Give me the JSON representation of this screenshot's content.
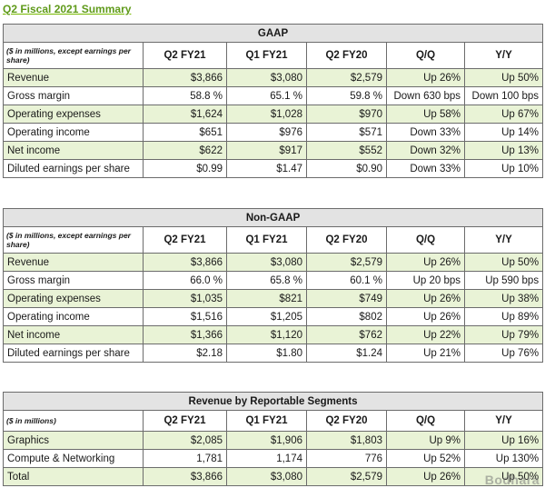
{
  "page_title": "Q2 Fiscal 2021 Summary",
  "watermark": "Bodhara",
  "gaap": {
    "title": "GAAP",
    "unit_note": "($ in millions, except earnings per share)",
    "columns": [
      "Q2 FY21",
      "Q1 FY21",
      "Q2 FY20",
      "Q/Q",
      "Y/Y"
    ],
    "rows": [
      {
        "label": "Revenue",
        "values": [
          "$3,866",
          "$3,080",
          "$2,579",
          "Up 26%",
          "Up 50%"
        ]
      },
      {
        "label": "Gross margin",
        "values": [
          "58.8 %",
          "65.1 %",
          "59.8 %",
          "Down 630 bps",
          "Down 100 bps"
        ]
      },
      {
        "label": "Operating expenses",
        "values": [
          "$1,624",
          "$1,028",
          "$970",
          "Up 58%",
          "Up 67%"
        ]
      },
      {
        "label": "Operating income",
        "values": [
          "$651",
          "$976",
          "$571",
          "Down 33%",
          "Up 14%"
        ]
      },
      {
        "label": "Net income",
        "values": [
          "$622",
          "$917",
          "$552",
          "Down 32%",
          "Up 13%"
        ]
      },
      {
        "label": "Diluted earnings per share",
        "values": [
          "$0.99",
          "$1.47",
          "$0.90",
          "Down 33%",
          "Up 10%"
        ]
      }
    ]
  },
  "non_gaap": {
    "title": "Non-GAAP",
    "unit_note": "($ in millions, except earnings per share)",
    "columns": [
      "Q2 FY21",
      "Q1 FY21",
      "Q2 FY20",
      "Q/Q",
      "Y/Y"
    ],
    "rows": [
      {
        "label": "Revenue",
        "values": [
          "$3,866",
          "$3,080",
          "$2,579",
          "Up 26%",
          "Up 50%"
        ]
      },
      {
        "label": "Gross margin",
        "values": [
          "66.0 %",
          "65.8 %",
          "60.1 %",
          "Up 20 bps",
          "Up 590 bps"
        ]
      },
      {
        "label": "Operating expenses",
        "values": [
          "$1,035",
          "$821",
          "$749",
          "Up 26%",
          "Up 38%"
        ]
      },
      {
        "label": "Operating income",
        "values": [
          "$1,516",
          "$1,205",
          "$802",
          "Up 26%",
          "Up 89%"
        ]
      },
      {
        "label": "Net income",
        "values": [
          "$1,366",
          "$1,120",
          "$762",
          "Up 22%",
          "Up 79%"
        ]
      },
      {
        "label": "Diluted earnings per share",
        "values": [
          "$2.18",
          "$1.80",
          "$1.24",
          "Up 21%",
          "Up 76%"
        ]
      }
    ]
  },
  "segments": {
    "title": "Revenue by Reportable Segments",
    "unit_note": "($ in millions)",
    "columns": [
      "Q2 FY21",
      "Q1 FY21",
      "Q2 FY20",
      "Q/Q",
      "Y/Y"
    ],
    "rows": [
      {
        "label": "Graphics",
        "values": [
          "$2,085",
          "$1,906",
          "$1,803",
          "Up 9%",
          "Up 16%"
        ]
      },
      {
        "label": "Compute & Networking",
        "values": [
          "1,781",
          "1,174",
          "776",
          "Up 52%",
          "Up 130%"
        ]
      },
      {
        "label": "Total",
        "values": [
          "$3,866",
          "$3,080",
          "$2,579",
          "Up 26%",
          "Up 50%"
        ]
      }
    ]
  },
  "colors": {
    "accent_green": "#76b900",
    "row_shade": "#e9f3d6",
    "title_band": "#e3e3e3"
  }
}
